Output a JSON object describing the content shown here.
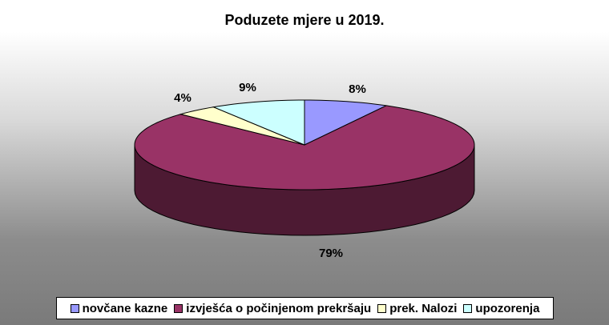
{
  "chart_data": {
    "type": "pie",
    "title": "Poduzete mjere u 2019.",
    "slices": [
      {
        "name": "novčane kazne",
        "value": 8,
        "label": "8%",
        "color": "#9999ff",
        "side_color": "#5c5cb0"
      },
      {
        "name": "izvješća o počinjenom prekršaju",
        "value": 79,
        "label": "79%",
        "color": "#993366",
        "side_color": "#4d1a33"
      },
      {
        "name": "prek. Nalozi",
        "value": 4,
        "label": "4%",
        "color": "#ffffcc",
        "side_color": "#a8a880"
      },
      {
        "name": "upozorenja",
        "value": 9,
        "label": "9%",
        "color": "#ccffff",
        "side_color": "#80a8a8"
      }
    ],
    "legend_position": "bottom"
  }
}
